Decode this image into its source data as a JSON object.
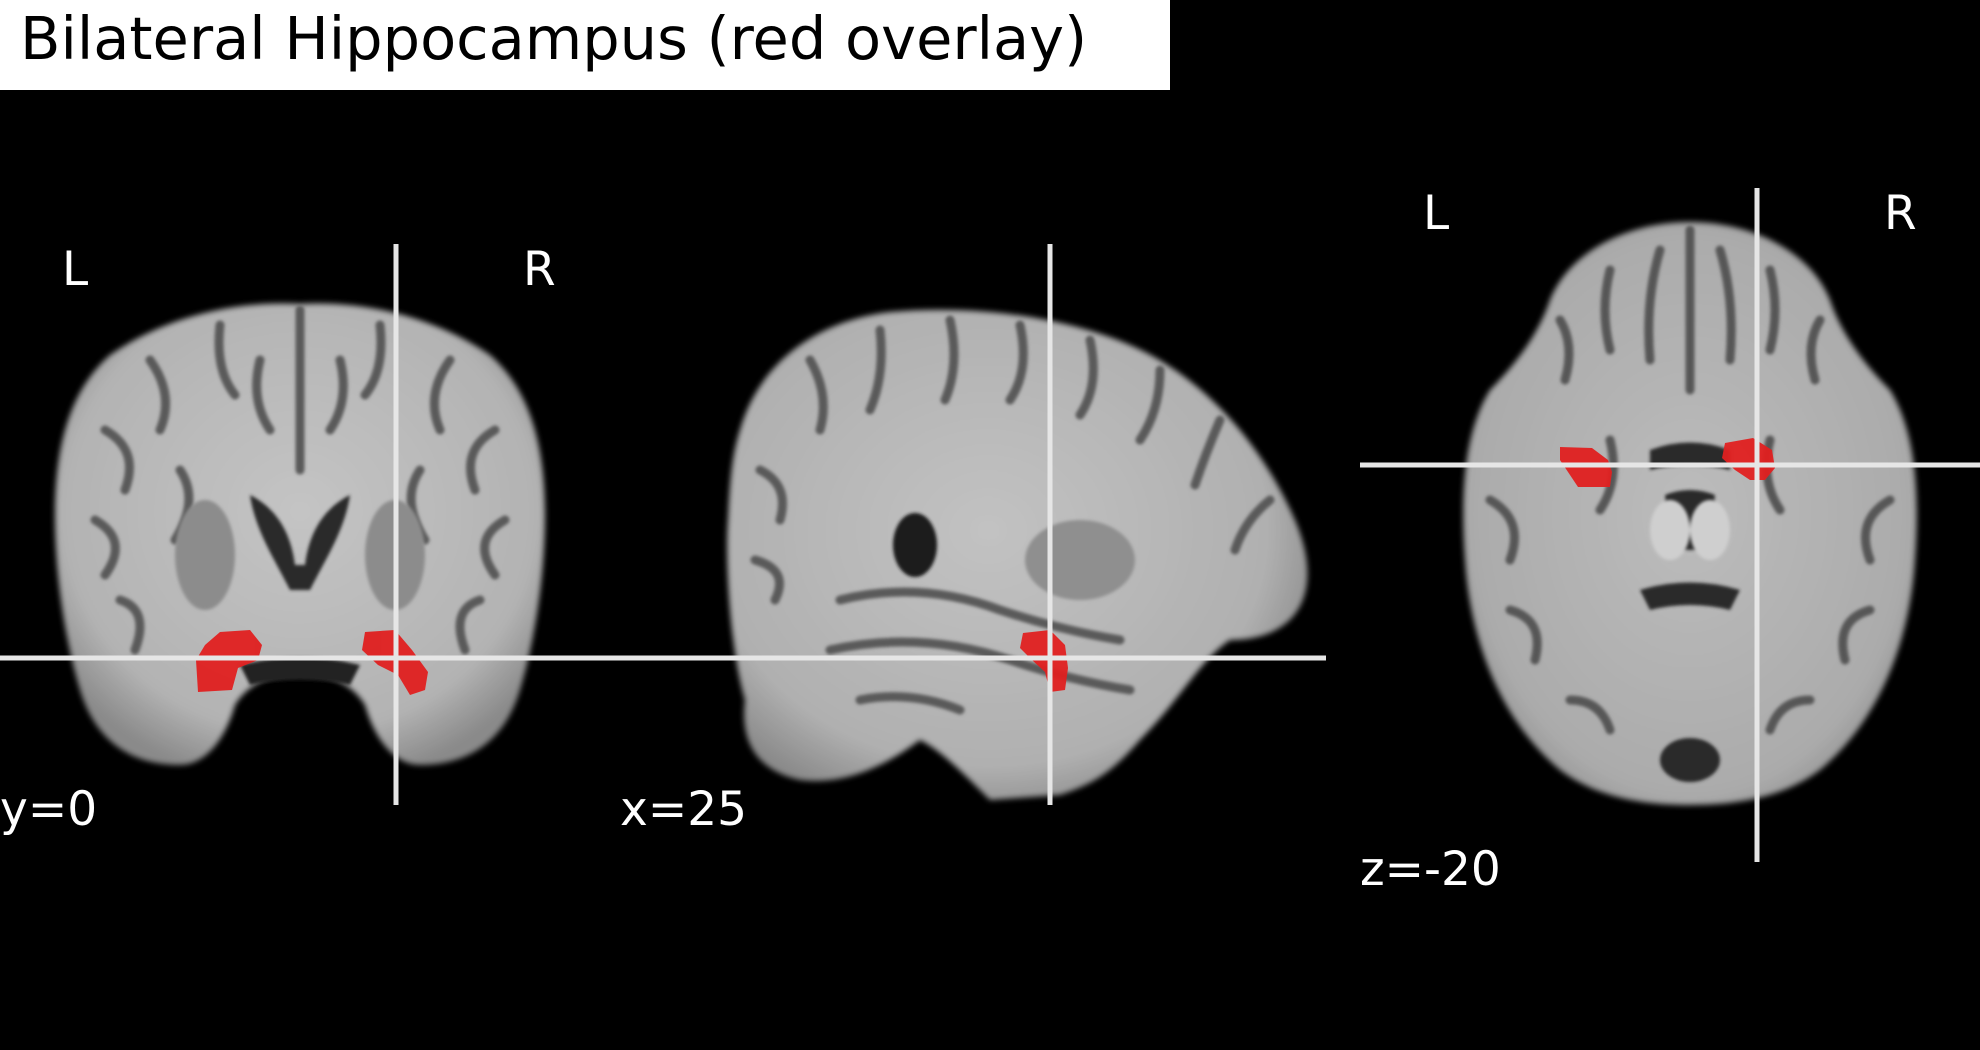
{
  "title": "Bilateral Hippocampus (red overlay)",
  "colors": {
    "background": "#000000",
    "overlay": "#e02020",
    "crosshair": "#e6e6e6",
    "brain_light": "#bdbdbd",
    "brain_dark": "#3c3c3c"
  },
  "views": [
    {
      "plane": "coronal",
      "orient_left": "L",
      "orient_right": "R",
      "coord_label": "y=0"
    },
    {
      "plane": "sagittal",
      "coord_label": "x=25"
    },
    {
      "plane": "axial",
      "orient_left": "L",
      "orient_right": "R",
      "coord_label": "z=-20"
    }
  ]
}
